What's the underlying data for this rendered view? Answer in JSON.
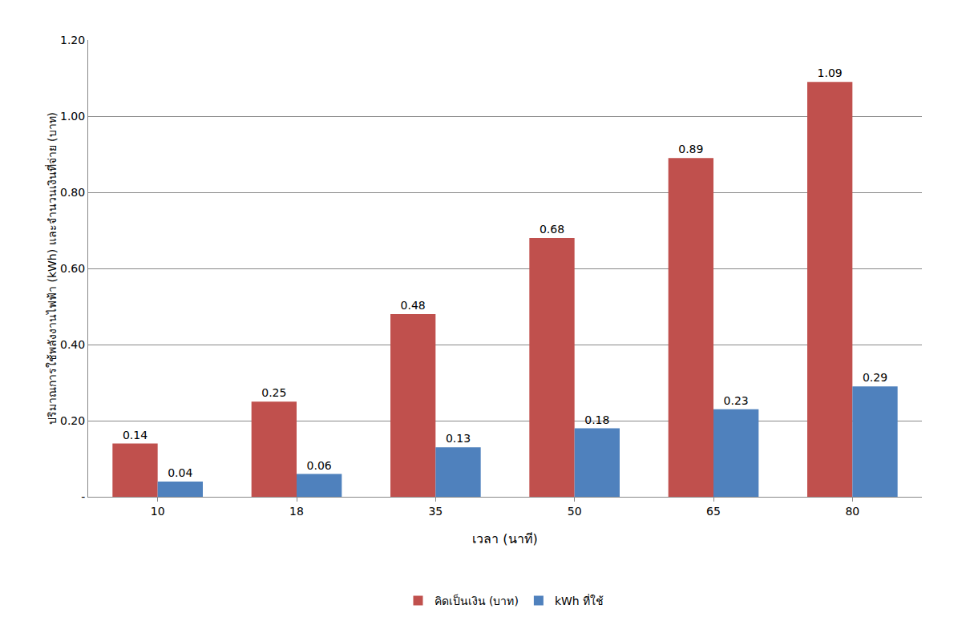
{
  "chart_data": {
    "type": "bar",
    "x_label": "เวลา (นาที)",
    "y_label": "ปริมาณการใช้พลังงานไฟฟ้า (kWh) และจำนวนเงินที่จ่าย (บาท)",
    "categories": [
      "10",
      "18",
      "35",
      "50",
      "65",
      "80"
    ],
    "series": [
      {
        "name": "คิดเป็นเงิน (บาท)",
        "color": "#c0504d",
        "values": [
          0.14,
          0.25,
          0.48,
          0.68,
          0.89,
          1.09
        ]
      },
      {
        "name": "kWh ที่ใช้",
        "color": "#4f81bd",
        "values": [
          0.04,
          0.06,
          0.13,
          0.18,
          0.23,
          0.29
        ]
      }
    ],
    "ylim": [
      0,
      1.2
    ],
    "yticks": [
      {
        "value": 0,
        "label": "-"
      },
      {
        "value": 0.2,
        "label": "0.20"
      },
      {
        "value": 0.4,
        "label": "0.40"
      },
      {
        "value": 0.6,
        "label": "0.60"
      },
      {
        "value": 0.8,
        "label": "0.80"
      },
      {
        "value": 1.0,
        "label": "1.00"
      },
      {
        "value": 1.2,
        "label": "1.20"
      }
    ],
    "grid": true,
    "legend": "bottom",
    "data_labels": true
  }
}
